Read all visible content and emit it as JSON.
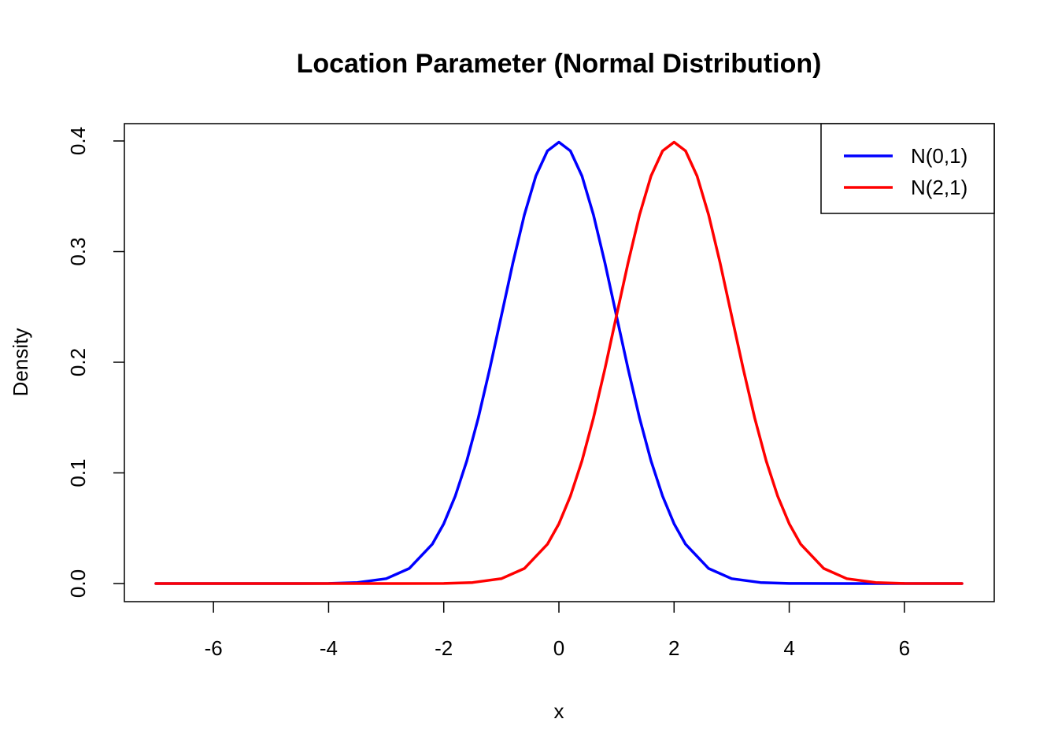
{
  "chart_data": {
    "type": "line",
    "title": "Location Parameter (Normal Distribution)",
    "xlabel": "x",
    "ylabel": "Density",
    "xlim": [
      -7,
      7
    ],
    "ylim": [
      0,
      0.4
    ],
    "x_ticks": [
      -6,
      -4,
      -2,
      0,
      2,
      4,
      6
    ],
    "y_ticks": [
      0.0,
      0.1,
      0.2,
      0.3,
      0.4
    ],
    "x_tick_labels": [
      "-6",
      "-4",
      "-2",
      "0",
      "2",
      "4",
      "6"
    ],
    "y_tick_labels": [
      "0.0",
      "0.1",
      "0.2",
      "0.3",
      "0.4"
    ],
    "grid": false,
    "legend_position": "top-right",
    "series": [
      {
        "name": "N(0,1)",
        "color": "#0000ff",
        "points": [
          [
            -7.0,
            0.0
          ],
          [
            -6.0,
            0.0
          ],
          [
            -5.0,
            0.0
          ],
          [
            -4.0,
            0.0001
          ],
          [
            -3.5,
            0.0009
          ],
          [
            -3.0,
            0.0044
          ],
          [
            -2.6,
            0.0136
          ],
          [
            -2.2,
            0.0355
          ],
          [
            -2.0,
            0.054
          ],
          [
            -1.8,
            0.079
          ],
          [
            -1.6,
            0.1109
          ],
          [
            -1.4,
            0.1497
          ],
          [
            -1.2,
            0.1942
          ],
          [
            -1.0,
            0.242
          ],
          [
            -0.8,
            0.2897
          ],
          [
            -0.6,
            0.3332
          ],
          [
            -0.4,
            0.3683
          ],
          [
            -0.2,
            0.391
          ],
          [
            0.0,
            0.3989
          ],
          [
            0.2,
            0.391
          ],
          [
            0.4,
            0.3683
          ],
          [
            0.6,
            0.3332
          ],
          [
            0.8,
            0.2897
          ],
          [
            1.0,
            0.242
          ],
          [
            1.2,
            0.1942
          ],
          [
            1.4,
            0.1497
          ],
          [
            1.6,
            0.1109
          ],
          [
            1.8,
            0.079
          ],
          [
            2.0,
            0.054
          ],
          [
            2.2,
            0.0355
          ],
          [
            2.6,
            0.0136
          ],
          [
            3.0,
            0.0044
          ],
          [
            3.5,
            0.0009
          ],
          [
            4.0,
            0.0001
          ],
          [
            5.0,
            0.0
          ],
          [
            6.0,
            0.0
          ],
          [
            7.0,
            0.0
          ]
        ]
      },
      {
        "name": "N(2,1)",
        "color": "#ff0000",
        "points": [
          [
            -7.0,
            0.0
          ],
          [
            -6.0,
            0.0
          ],
          [
            -5.0,
            0.0
          ],
          [
            -3.0,
            0.0
          ],
          [
            -2.0,
            0.0001
          ],
          [
            -1.5,
            0.0009
          ],
          [
            -1.0,
            0.0044
          ],
          [
            -0.6,
            0.0136
          ],
          [
            -0.2,
            0.0355
          ],
          [
            0.0,
            0.054
          ],
          [
            0.2,
            0.079
          ],
          [
            0.4,
            0.1109
          ],
          [
            0.6,
            0.1497
          ],
          [
            0.8,
            0.1942
          ],
          [
            1.0,
            0.242
          ],
          [
            1.2,
            0.2897
          ],
          [
            1.4,
            0.3332
          ],
          [
            1.6,
            0.3683
          ],
          [
            1.8,
            0.391
          ],
          [
            2.0,
            0.3989
          ],
          [
            2.2,
            0.391
          ],
          [
            2.4,
            0.3683
          ],
          [
            2.6,
            0.3332
          ],
          [
            2.8,
            0.2897
          ],
          [
            3.0,
            0.242
          ],
          [
            3.2,
            0.1942
          ],
          [
            3.4,
            0.1497
          ],
          [
            3.6,
            0.1109
          ],
          [
            3.8,
            0.079
          ],
          [
            4.0,
            0.054
          ],
          [
            4.2,
            0.0355
          ],
          [
            4.6,
            0.0136
          ],
          [
            5.0,
            0.0044
          ],
          [
            5.5,
            0.0009
          ],
          [
            6.0,
            0.0001
          ],
          [
            7.0,
            0.0
          ]
        ]
      }
    ]
  }
}
